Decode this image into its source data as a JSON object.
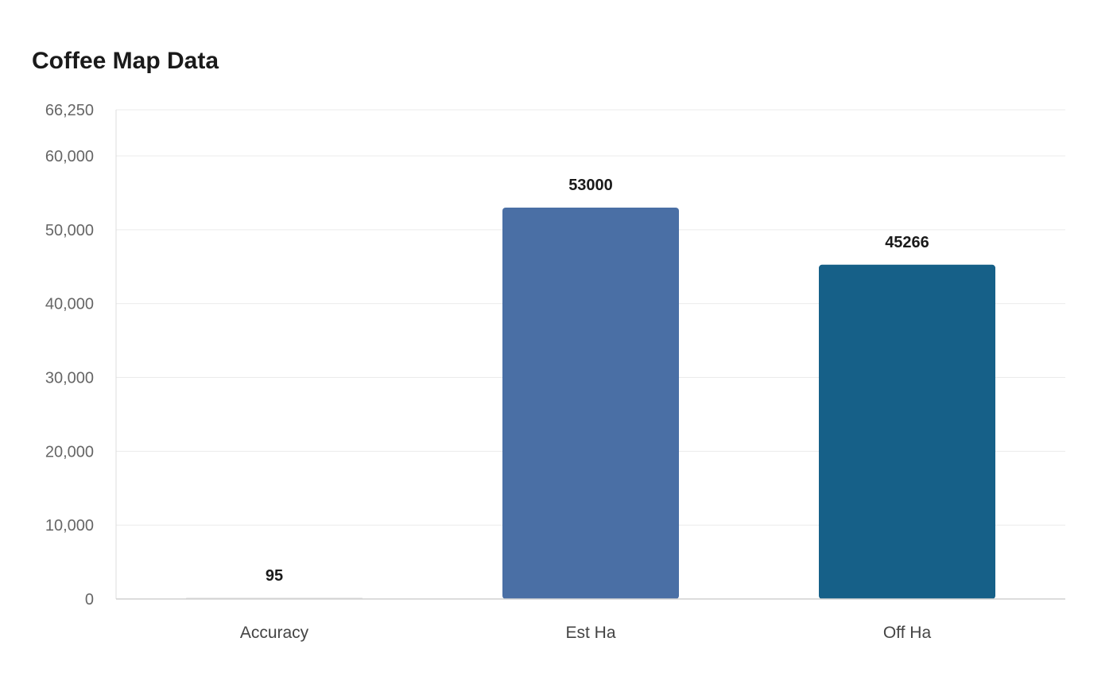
{
  "chart_data": {
    "type": "bar",
    "title": "Coffee Map Data",
    "categories": [
      "Accuracy",
      "Est Ha",
      "Off Ha"
    ],
    "values": [
      95,
      53000,
      45266
    ],
    "colors": [
      "#dcdcdc",
      "#4a6fa5",
      "#166088"
    ],
    "ylim": [
      0,
      66250
    ],
    "yticks": [
      0,
      10000,
      20000,
      30000,
      40000,
      50000,
      60000,
      66250
    ],
    "ytick_labels": [
      "0",
      "10,000",
      "20,000",
      "30,000",
      "40,000",
      "50,000",
      "60,000",
      "66,250"
    ],
    "grid": true,
    "xlabel": "",
    "ylabel": ""
  }
}
